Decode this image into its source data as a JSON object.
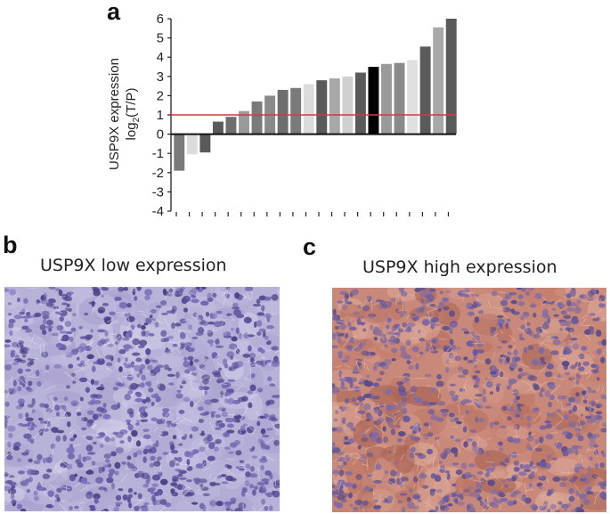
{
  "panels": {
    "a": "a",
    "b": "b",
    "c": "c"
  },
  "captions": {
    "low": "USP9X low expression",
    "high": "USP9X high expression"
  },
  "chart_data": {
    "type": "bar",
    "ylabel_line1": "USP9X expression",
    "ylabel_line2_prefix": "log",
    "ylabel_line2_sub": "2",
    "ylabel_line2_suffix": "(T/P)",
    "ylim": [
      -4,
      6
    ],
    "yticks": [
      -4,
      -3,
      -2,
      -1,
      0,
      1,
      2,
      3,
      4,
      5,
      6
    ],
    "threshold": 1,
    "threshold_color": "#d23a3a",
    "values": [
      -1.9,
      -1.05,
      -0.95,
      0.65,
      0.9,
      1.2,
      1.7,
      2.0,
      2.3,
      2.4,
      2.6,
      2.8,
      2.9,
      3.0,
      3.2,
      3.5,
      3.65,
      3.7,
      3.85,
      4.55,
      5.55,
      6.0
    ],
    "bar_colors": [
      "#7a7a7a",
      "#dcdcdc",
      "#5a5a5a",
      "#5a5a5a",
      "#6e6e6e",
      "#9a9a9a",
      "#7a7a7a",
      "#8a8a8a",
      "#6e6e6e",
      "#7a7a7a",
      "#dcdcdc",
      "#5a5a5a",
      "#a8a8a8",
      "#d0d0d0",
      "#5a5a5a",
      "#000000",
      "#9a9a9a",
      "#8a8a8a",
      "#e0e0e0",
      "#5a5a5a",
      "#a8a8a8",
      "#5a5a5a"
    ],
    "grid": false
  },
  "images": {
    "low_base": "#b7b2d8",
    "high_base": "#c9897a"
  }
}
